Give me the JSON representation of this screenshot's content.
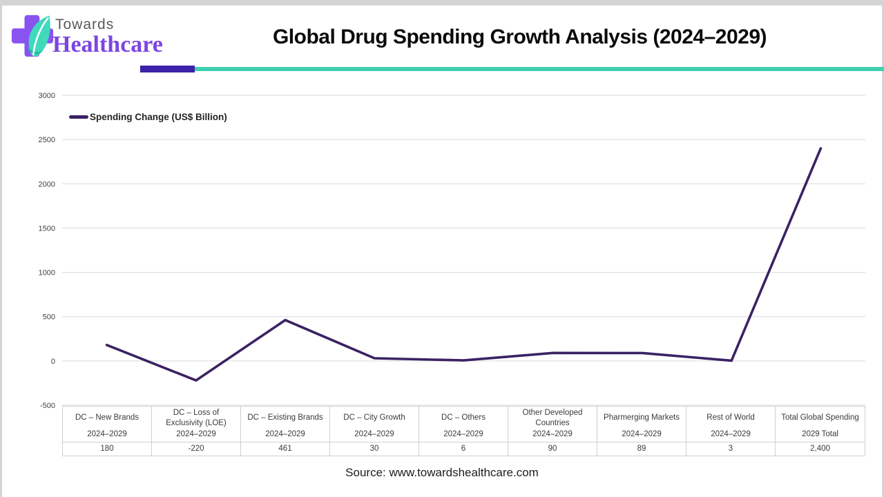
{
  "header": {
    "logo": {
      "word1": "Towards",
      "word2": "Healthcare"
    },
    "title": "Global Drug Spending Growth Analysis (2024–2029)"
  },
  "legend": {
    "label": "Spending Change (US$ Billion)"
  },
  "footer": {
    "source": "Source: www.towardshealthcare.com"
  },
  "colors": {
    "line": "#3a2264",
    "accent_bar": "#3a22aa",
    "accent_line": "#3ecfb2",
    "grid": "#d9d9d9",
    "tick_text": "#404040",
    "logo_purple": "#8a53f0",
    "logo_teal": "#3fd9bb",
    "logo_teal_dark": "#1db79a",
    "logo_text_purple": "#7c45e2",
    "logo_text_gray": "#58595b"
  },
  "chart_data": {
    "type": "line",
    "title": "Global Drug Spending Growth Analysis (2024–2029)",
    "categories": [
      "DC – New Brands",
      "DC – Loss of Exclusivity (LOE)",
      "DC – Existing Brands",
      "DC – City Growth",
      "DC – Others",
      "Other Developed Countries",
      "Pharmerging Markets",
      "Rest of World",
      "Total Global Spending"
    ],
    "category_sublabels": [
      "2024–2029",
      "2024–2029",
      "2024–2029",
      "2024–2029",
      "2024–2029",
      "2024–2029",
      "2024–2029",
      "2024–2029",
      "2029 Total"
    ],
    "series": [
      {
        "name": "Spending Change (US$ Billion)",
        "values": [
          180,
          -220,
          461,
          30,
          6,
          90,
          89,
          3,
          2400
        ],
        "color": "#3a2264"
      }
    ],
    "value_labels": [
      "180",
      "-220",
      "461",
      "30",
      "6",
      "90",
      "89",
      "3",
      "2,400"
    ],
    "yticks": [
      3000,
      2500,
      2000,
      1500,
      1000,
      500,
      0,
      -500
    ],
    "ylim": [
      -500,
      3000
    ],
    "grid": "horizontal",
    "legend_position": "top-left",
    "xlabel": "",
    "ylabel": ""
  }
}
